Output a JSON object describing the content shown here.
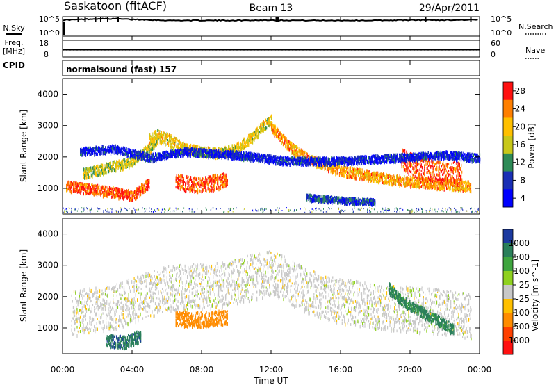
{
  "header": {
    "station": "Saskatoon (fitACF)",
    "beam": "Beam 13",
    "date": "29/Apr/2011"
  },
  "chart_data": [
    {
      "type": "line",
      "panel": "noise",
      "left_label": "N.Sky",
      "right_label": "N.Search",
      "left_ticks": [
        "10^5",
        "10^0"
      ],
      "right_ticks": [
        "10^5",
        "10^0"
      ],
      "x": [
        0,
        0.5,
        1,
        2,
        3,
        4,
        5,
        6,
        8,
        10,
        12,
        14,
        16,
        18,
        20,
        22,
        24
      ],
      "values": [
        4.6,
        4.7,
        4.8,
        5.0,
        5.0,
        4.8,
        4.7,
        4.5,
        4.5,
        4.5,
        4.6,
        4.5,
        4.5,
        4.5,
        4.6,
        4.6,
        4.7
      ]
    },
    {
      "type": "line",
      "panel": "frequency",
      "left_label": "Freq.",
      "left_unit": "[MHz]",
      "right_label": "Nave",
      "left_ticks": [
        "18",
        "8"
      ],
      "right_ticks": [
        "60",
        "0"
      ],
      "freq_range": [
        8,
        18
      ],
      "nave_range": [
        0,
        60
      ],
      "freq_x": [
        0,
        24
      ],
      "freq_values": [
        12.3,
        12.3
      ],
      "nave_x": [
        0,
        24
      ],
      "nave_values": [
        25,
        25
      ]
    },
    {
      "type": "text",
      "panel": "cpid",
      "left_label": "CPID",
      "program": "normalsound (fast) 157"
    },
    {
      "type": "heatmap",
      "panel": "power",
      "ylabel": "Slant Range [km]",
      "ylim": [
        180,
        4500
      ],
      "yticks": [
        "1000",
        "2000",
        "3000",
        "4000"
      ],
      "colorbar_label": "Power [dB]",
      "colorbar_ticks": [
        "28",
        "24",
        "20",
        "16",
        "12",
        "8",
        "4"
      ],
      "colorbar_colors": [
        "#ff1010",
        "#ff7f00",
        "#ffc000",
        "#c8c81a",
        "#2e8b57",
        "#1a2fb5",
        "#0000ff"
      ],
      "bands": [
        {
          "x": [
            0.2,
            1,
            2,
            3,
            3.5,
            4,
            4.5,
            5
          ],
          "y": [
            1100,
            1050,
            980,
            900,
            850,
            800,
            1000,
            1200
          ],
          "width": 200,
          "level": 26
        },
        {
          "x": [
            1.2,
            2,
            3,
            4,
            4.5,
            5,
            5.5
          ],
          "y": [
            1500,
            1600,
            1750,
            1900,
            2100,
            2300,
            2600
          ],
          "width": 200,
          "level": 16
        },
        {
          "x": [
            5,
            5.5,
            6,
            6.5,
            7
          ],
          "y": [
            2600,
            2700,
            2600,
            2450,
            2300
          ],
          "width": 250,
          "level": 18
        },
        {
          "x": [
            6.5,
            7,
            7.5,
            8,
            8.5,
            9,
            9.5
          ],
          "y": [
            1250,
            1200,
            1150,
            1150,
            1200,
            1250,
            1300
          ],
          "width": 300,
          "level": 26
        },
        {
          "x": [
            7,
            8,
            9,
            10,
            11,
            11.5,
            12
          ],
          "y": [
            2300,
            2200,
            2150,
            2300,
            2700,
            3000,
            3200
          ],
          "width": 200,
          "level": 18
        },
        {
          "x": [
            12,
            12.5,
            13,
            14,
            15,
            16,
            17,
            18,
            19,
            20,
            21,
            22,
            23,
            23.5
          ],
          "y": [
            3000,
            2700,
            2400,
            2000,
            1800,
            1600,
            1500,
            1400,
            1300,
            1250,
            1200,
            1150,
            1100,
            1100
          ],
          "width": 200,
          "level": 22
        },
        {
          "x": [
            19.5,
            20,
            21,
            22,
            23
          ],
          "y": [
            1950,
            1800,
            1600,
            1500,
            1550
          ],
          "width": 450,
          "level": 26
        },
        {
          "x": [
            1,
            3,
            5,
            7,
            10,
            13,
            16,
            19,
            22,
            24
          ],
          "y": [
            2200,
            2300,
            2000,
            2200,
            2100,
            1900,
            1900,
            2000,
            2100,
            2000
          ],
          "width": 150,
          "level": 6
        },
        {
          "x": [
            14,
            15,
            16,
            17,
            18
          ],
          "y": [
            750,
            700,
            650,
            620,
            600
          ],
          "width": 120,
          "level": 8
        }
      ]
    },
    {
      "type": "heatmap",
      "panel": "velocity",
      "ylabel": "Slant Range [km]",
      "xlabel": "Time UT",
      "xticks": [
        "00:00",
        "04:00",
        "08:00",
        "12:00",
        "16:00",
        "20:00",
        "00:00"
      ],
      "ylim": [
        180,
        4500
      ],
      "yticks": [
        "1000",
        "2000",
        "3000",
        "4000"
      ],
      "colorbar_label": "Velocity [m s^-1]",
      "colorbar_ticks": [
        "1000",
        "500",
        "100",
        "25",
        "-25",
        "-100",
        "-500",
        "-1000"
      ],
      "colorbar_colors": [
        "#1c3aa0",
        "#2a7f5a",
        "#3fa53f",
        "#8fd11f",
        "#c8c8c8",
        "#ffc000",
        "#ff8c00",
        "#ff4000",
        "#ff1010"
      ],
      "bands": [
        {
          "x": [
            0.5,
            3,
            6,
            9,
            12,
            15,
            18,
            21,
            23.5
          ],
          "y": [
            1500,
            1700,
            2300,
            2400,
            2800,
            2000,
            1700,
            1600,
            1400
          ],
          "width": 900,
          "level": 0
        },
        {
          "x": [
            2.5,
            3,
            3.5,
            4,
            4.5
          ],
          "y": [
            650,
            600,
            580,
            650,
            800
          ],
          "width": 250,
          "level": 600
        },
        {
          "x": [
            6.5,
            7,
            8,
            9,
            9.5
          ],
          "y": [
            1350,
            1300,
            1300,
            1350,
            1400
          ],
          "width": 300,
          "level": -150
        },
        {
          "x": [
            18.8,
            19.5,
            20.5,
            21.5,
            22.5
          ],
          "y": [
            2300,
            1900,
            1600,
            1300,
            1000
          ],
          "width": 200,
          "level": 400
        }
      ]
    }
  ]
}
